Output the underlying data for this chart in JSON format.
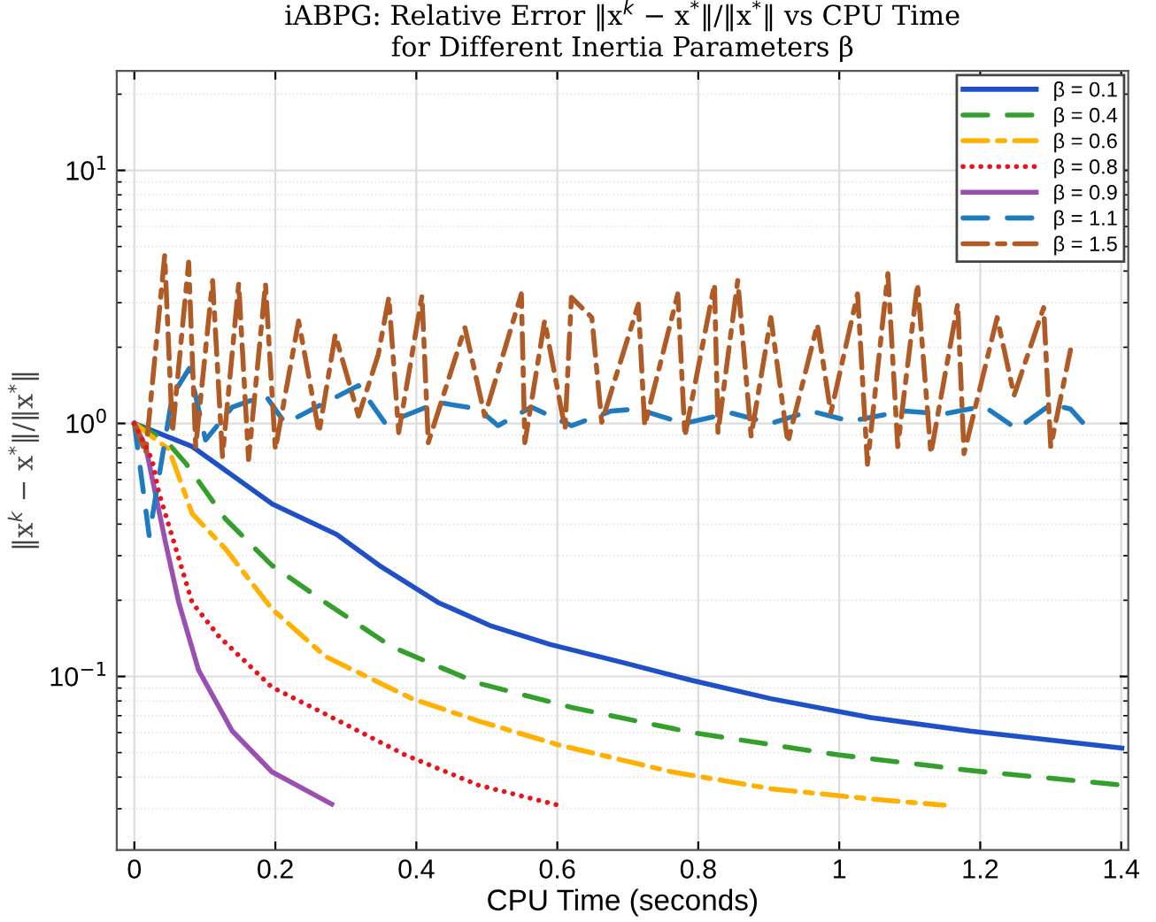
{
  "chart_data": {
    "type": "line",
    "title": "iABPG: Relative Error ‖x$^{k}$ − x$^{*}$‖/‖x$^{*}$‖ vs CPU Time",
    "subtitle": "for Different Inertia Parameters β",
    "xlabel": "CPU Time (seconds)",
    "ylabel": "‖x$^{k}$ − x$^{*}$‖/‖x$^{*}$‖",
    "log": "y",
    "grid": true,
    "legend": "top right",
    "xlim": [
      -0.025,
      1.41
    ],
    "ylim": [
      0.0206,
      24.7
    ],
    "xticks": [
      0,
      0.2,
      0.4,
      0.6,
      0.8,
      1,
      1.2,
      1.4
    ],
    "yticks": [
      {
        "value": 0.1,
        "label": "10$^{−1}$"
      },
      {
        "value": 1,
        "label": "10$^{0}$"
      },
      {
        "value": 10,
        "label": "10$^{1}$"
      }
    ],
    "series": [
      {
        "name": "β = 0.1",
        "color": "#1f50c8",
        "line_style": "solid",
        "x": [
          0,
          0.082,
          0.196,
          0.287,
          0.347,
          0.431,
          0.507,
          0.589,
          0.696,
          0.79,
          0.903,
          1.045,
          1.186,
          1.401
        ],
        "values": [
          1.0,
          0.81,
          0.48,
          0.364,
          0.275,
          0.196,
          0.158,
          0.134,
          0.113,
          0.0966,
          0.0817,
          0.0688,
          0.0608,
          0.0521
        ]
      },
      {
        "name": "β = 0.4",
        "color": "#33a02c",
        "line_style": "dashed",
        "x": [
          0,
          0.044,
          0.073,
          0.129,
          0.195,
          0.271,
          0.365,
          0.488,
          0.62,
          0.79,
          0.998,
          1.186,
          1.41
        ],
        "values": [
          1.0,
          0.86,
          0.695,
          0.42,
          0.275,
          0.196,
          0.131,
          0.094,
          0.0755,
          0.0601,
          0.049,
          0.0425,
          0.037
        ]
      },
      {
        "name": "β = 0.6",
        "color": "#ffb000",
        "line_style": "dashdot",
        "x": [
          0,
          0.049,
          0.082,
          0.129,
          0.195,
          0.271,
          0.394,
          0.488,
          0.601,
          0.762,
          0.903,
          1.045,
          1.149
        ],
        "values": [
          1.0,
          0.79,
          0.44,
          0.32,
          0.185,
          0.12,
          0.0817,
          0.0667,
          0.0537,
          0.042,
          0.036,
          0.0328,
          0.031
        ]
      },
      {
        "name": "β = 0.8",
        "color": "#e8141c",
        "line_style": "dotted",
        "x": [
          0,
          0.025,
          0.035,
          0.082,
          0.12,
          0.195,
          0.271,
          0.384,
          0.488,
          0.601
        ],
        "values": [
          1.0,
          0.72,
          0.53,
          0.196,
          0.144,
          0.0908,
          0.071,
          0.049,
          0.0372,
          0.031
        ]
      },
      {
        "name": "β = 0.9",
        "color": "#9b4fb0",
        "line_style": "solid",
        "x": [
          0,
          0.016,
          0.044,
          0.063,
          0.091,
          0.139,
          0.195,
          0.28
        ],
        "values": [
          1.0,
          0.81,
          0.34,
          0.196,
          0.106,
          0.0608,
          0.042,
          0.0313
        ]
      },
      {
        "name": "β = 1.1",
        "color": "#1f7bc0",
        "line_style": "dashed",
        "x": [
          0,
          0.021,
          0.054,
          0.078,
          0.101,
          0.139,
          0.186,
          0.214,
          0.271,
          0.318,
          0.356,
          0.431,
          0.488,
          0.516,
          0.563,
          0.62,
          0.677,
          0.714,
          0.78,
          0.846,
          0.903,
          0.959,
          1.016,
          1.092,
          1.149,
          1.205,
          1.252,
          1.3,
          1.328,
          1.351,
          1.356
        ],
        "values": [
          1.0,
          0.36,
          1.29,
          1.65,
          0.86,
          1.16,
          1.29,
          1.0,
          1.21,
          1.41,
          1.0,
          1.21,
          1.14,
          0.98,
          1.16,
          0.98,
          1.12,
          1.14,
          1.0,
          1.1,
          1.0,
          1.12,
          1.02,
          1.12,
          1.09,
          1.17,
          0.95,
          1.19,
          1.14,
          0.97,
          1.05
        ]
      },
      {
        "name": "β = 1.5",
        "color": "#b05a25",
        "line_style": "dashdot",
        "x": [
          0,
          0.016,
          0.043,
          0.054,
          0.077,
          0.087,
          0.111,
          0.125,
          0.148,
          0.162,
          0.186,
          0.2,
          0.233,
          0.262,
          0.285,
          0.318,
          0.346,
          0.361,
          0.375,
          0.408,
          0.417,
          0.469,
          0.497,
          0.549,
          0.554,
          0.582,
          0.611,
          0.62,
          0.649,
          0.663,
          0.715,
          0.724,
          0.771,
          0.781,
          0.823,
          0.828,
          0.856,
          0.875,
          0.903,
          0.927,
          0.969,
          0.988,
          1.026,
          1.04,
          1.069,
          1.083,
          1.111,
          1.13,
          1.168,
          1.177,
          1.224,
          1.248,
          1.29,
          1.3,
          1.328
        ],
        "values": [
          1.0,
          0.76,
          4.61,
          0.92,
          4.34,
          0.81,
          3.67,
          0.74,
          3.56,
          0.72,
          3.56,
          0.79,
          2.54,
          0.92,
          2.24,
          1.07,
          1.87,
          3.15,
          0.92,
          3.19,
          0.84,
          2.39,
          1.07,
          3.25,
          0.84,
          2.54,
          0.95,
          3.15,
          2.62,
          1.01,
          2.96,
          0.98,
          3.25,
          0.89,
          3.56,
          0.92,
          3.67,
          0.89,
          2.62,
          0.84,
          2.46,
          1.1,
          3.25,
          0.69,
          3.91,
          0.81,
          3.56,
          0.76,
          2.96,
          0.76,
          2.62,
          1.29,
          2.87,
          0.81,
          1.95
        ]
      }
    ]
  }
}
